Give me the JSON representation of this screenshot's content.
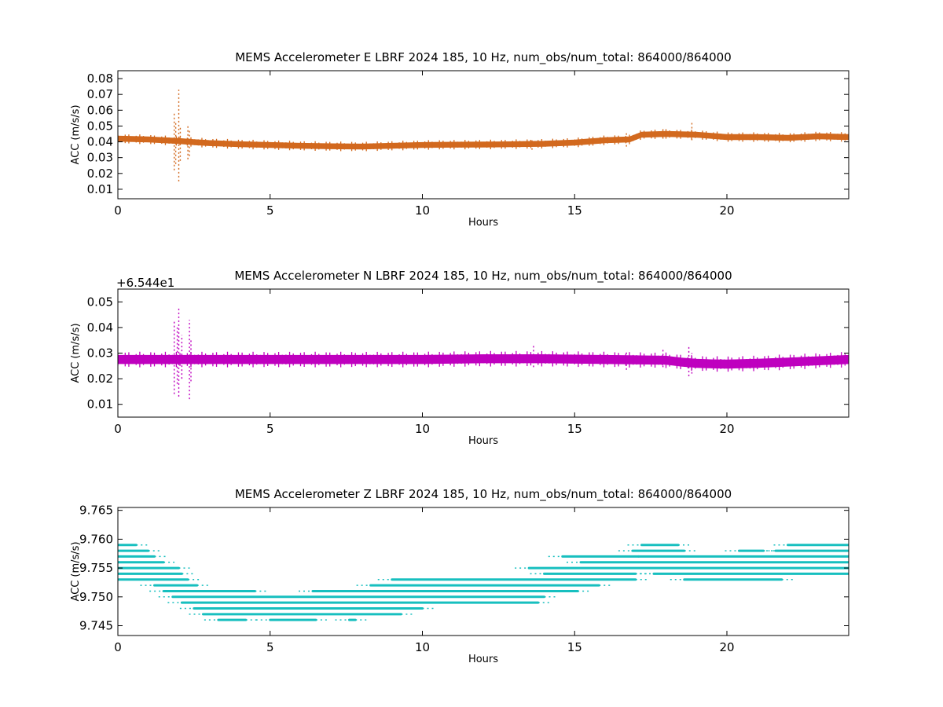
{
  "chart_data": [
    {
      "type": "scatter",
      "title": "MEMS Accelerometer E LBRF 2024 185, 10 Hz, num_obs/num_total: 864000/864000",
      "xlabel": "Hours",
      "ylabel": "ACC (m/s/s)",
      "xlim": [
        0,
        24
      ],
      "ylim": [
        0.004,
        0.085
      ],
      "x_ticks": [
        0,
        5,
        10,
        15,
        20
      ],
      "y_ticks": [
        0.01,
        0.02,
        0.03,
        0.04,
        0.05,
        0.06,
        0.07,
        0.08
      ],
      "y_tick_labels": [
        "0.01",
        "0.02",
        "0.03",
        "0.04",
        "0.05",
        "0.06",
        "0.07",
        "0.08"
      ],
      "y_offset_text": "",
      "color": "#d2691e",
      "grid": false,
      "band_center": {
        "x": [
          0,
          1,
          2,
          2.5,
          3,
          4,
          5,
          6,
          7,
          8,
          9,
          10,
          11,
          12,
          13,
          14,
          15,
          16,
          16.8,
          17.2,
          18,
          19,
          20,
          21,
          22,
          23,
          24
        ],
        "y": [
          0.042,
          0.0415,
          0.0405,
          0.0398,
          0.0392,
          0.0385,
          0.038,
          0.0375,
          0.0372,
          0.037,
          0.0375,
          0.038,
          0.0382,
          0.0383,
          0.0385,
          0.0388,
          0.0395,
          0.041,
          0.0415,
          0.0445,
          0.045,
          0.0445,
          0.043,
          0.043,
          0.0425,
          0.0435,
          0.043
        ]
      },
      "band_halfwidth": 0.0016,
      "spikes": [
        {
          "x": 1.85,
          "ymin": 0.022,
          "ymax": 0.058
        },
        {
          "x": 1.9,
          "ymin": 0.026,
          "ymax": 0.053
        },
        {
          "x": 2.0,
          "ymin": 0.015,
          "ymax": 0.073
        },
        {
          "x": 2.05,
          "ymin": 0.028,
          "ymax": 0.05
        },
        {
          "x": 2.3,
          "ymin": 0.029,
          "ymax": 0.05
        },
        {
          "x": 2.35,
          "ymin": 0.031,
          "ymax": 0.047
        },
        {
          "x": 13.6,
          "ymin": 0.035,
          "ymax": 0.041
        },
        {
          "x": 16.7,
          "ymin": 0.037,
          "ymax": 0.046
        },
        {
          "x": 17.9,
          "ymin": 0.042,
          "ymax": 0.049
        },
        {
          "x": 18.85,
          "ymin": 0.041,
          "ymax": 0.052
        }
      ]
    },
    {
      "type": "scatter",
      "title": "MEMS Accelerometer N LBRF 2024 185, 10 Hz, num_obs/num_total: 864000/864000",
      "xlabel": "Hours",
      "ylabel": "ACC (m/s/s)",
      "xlim": [
        0,
        24
      ],
      "ylim": [
        0.005,
        0.055
      ],
      "x_ticks": [
        0,
        5,
        10,
        15,
        20
      ],
      "y_ticks": [
        0.01,
        0.02,
        0.03,
        0.04,
        0.05
      ],
      "y_tick_labels": [
        "0.01",
        "0.02",
        "0.03",
        "0.04",
        "0.05"
      ],
      "y_offset_text": "+6.544e1",
      "color": "#bf00bf",
      "grid": false,
      "band_center": {
        "x": [
          0,
          2,
          4,
          6,
          8,
          10,
          12,
          14,
          16,
          18,
          18.5,
          19,
          19.5,
          20,
          21,
          22,
          23,
          24
        ],
        "y": [
          0.0275,
          0.0275,
          0.0275,
          0.0275,
          0.0275,
          0.0275,
          0.0278,
          0.0278,
          0.0275,
          0.0272,
          0.0265,
          0.026,
          0.0258,
          0.0257,
          0.026,
          0.0265,
          0.027,
          0.0275
        ]
      },
      "band_halfwidth": 0.0016,
      "spikes": [
        {
          "x": 1.85,
          "ymin": 0.014,
          "ymax": 0.043
        },
        {
          "x": 1.95,
          "ymin": 0.018,
          "ymax": 0.04
        },
        {
          "x": 2.0,
          "ymin": 0.013,
          "ymax": 0.048
        },
        {
          "x": 2.1,
          "ymin": 0.02,
          "ymax": 0.037
        },
        {
          "x": 2.35,
          "ymin": 0.012,
          "ymax": 0.043
        },
        {
          "x": 2.4,
          "ymin": 0.019,
          "ymax": 0.035
        },
        {
          "x": 13.65,
          "ymin": 0.0245,
          "ymax": 0.033
        },
        {
          "x": 16.7,
          "ymin": 0.0235,
          "ymax": 0.031
        },
        {
          "x": 17.9,
          "ymin": 0.0245,
          "ymax": 0.032
        },
        {
          "x": 18.75,
          "ymin": 0.021,
          "ymax": 0.0325
        },
        {
          "x": 18.85,
          "ymin": 0.022,
          "ymax": 0.03
        }
      ]
    },
    {
      "type": "scatter",
      "title": "MEMS Accelerometer Z LBRF 2024 185, 10 Hz, num_obs/num_total: 864000/864000",
      "xlabel": "Hours",
      "ylabel": "ACC (m/s/s)",
      "xlim": [
        0,
        24
      ],
      "ylim": [
        9.7433,
        9.7655
      ],
      "x_ticks": [
        0,
        5,
        10,
        15,
        20
      ],
      "y_ticks": [
        9.745,
        9.75,
        9.755,
        9.76,
        9.765
      ],
      "y_tick_labels": [
        "9.745",
        "9.750",
        "9.755",
        "9.760",
        "9.765"
      ],
      "y_offset_text": "",
      "color": "#17bfbf",
      "grid": false,
      "quantized_levels": [
        {
          "y": 9.759,
          "segments": [
            [
              0.0,
              0.6
            ],
            [
              17.2,
              18.4
            ],
            [
              22.0,
              24.0
            ]
          ]
        },
        {
          "y": 9.758,
          "segments": [
            [
              0.0,
              1.0
            ],
            [
              16.9,
              18.6
            ],
            [
              20.4,
              21.2
            ],
            [
              21.6,
              24.0
            ]
          ]
        },
        {
          "y": 9.757,
          "segments": [
            [
              0.0,
              1.2
            ],
            [
              14.6,
              17.1
            ],
            [
              17.1,
              24.0
            ]
          ]
        },
        {
          "y": 9.756,
          "segments": [
            [
              0.0,
              1.5
            ],
            [
              15.2,
              24.0
            ]
          ]
        },
        {
          "y": 9.755,
          "segments": [
            [
              0.0,
              2.0
            ],
            [
              13.5,
              24.0
            ]
          ]
        },
        {
          "y": 9.754,
          "segments": [
            [
              0.0,
              2.1
            ],
            [
              14.0,
              17.0
            ],
            [
              17.6,
              24.0
            ]
          ]
        },
        {
          "y": 9.753,
          "segments": [
            [
              0.0,
              2.3
            ],
            [
              9.0,
              17.0
            ],
            [
              18.6,
              21.8
            ]
          ]
        },
        {
          "y": 9.752,
          "segments": [
            [
              1.2,
              2.6
            ],
            [
              8.3,
              15.8
            ]
          ]
        },
        {
          "y": 9.751,
          "segments": [
            [
              1.5,
              4.5
            ],
            [
              6.4,
              15.1
            ]
          ]
        },
        {
          "y": 9.75,
          "segments": [
            [
              1.8,
              14.0
            ]
          ]
        },
        {
          "y": 9.749,
          "segments": [
            [
              2.1,
              13.8
            ]
          ]
        },
        {
          "y": 9.748,
          "segments": [
            [
              2.5,
              10.0
            ]
          ]
        },
        {
          "y": 9.747,
          "segments": [
            [
              2.8,
              9.3
            ]
          ]
        },
        {
          "y": 9.746,
          "segments": [
            [
              3.3,
              4.2
            ],
            [
              5.0,
              6.5
            ],
            [
              7.6,
              7.8
            ]
          ]
        }
      ]
    }
  ]
}
